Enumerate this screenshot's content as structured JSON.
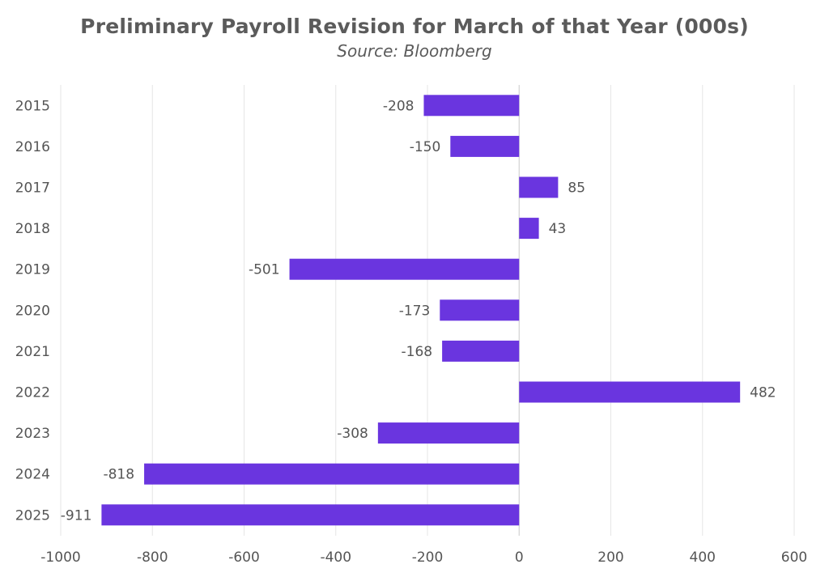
{
  "chart_data": {
    "type": "bar",
    "orientation": "horizontal",
    "title": "Preliminary Payroll Revision for March of that Year (000s)",
    "subtitle": "Source: Bloomberg",
    "xlabel": "",
    "ylabel": "",
    "categories": [
      "2015",
      "2016",
      "2017",
      "2018",
      "2019",
      "2020",
      "2021",
      "2022",
      "2023",
      "2024",
      "2025"
    ],
    "values": [
      -208,
      -150,
      85,
      43,
      -501,
      -173,
      -168,
      482,
      -308,
      -818,
      -911
    ],
    "xlim": [
      -1000,
      600
    ],
    "xticks": [
      -1000,
      -800,
      -600,
      -400,
      -200,
      0,
      200,
      400,
      600
    ],
    "grid": "vertical",
    "legend": "none",
    "colors": {
      "bar": "#6a35df",
      "text": "#5b5b5b",
      "grid": "#e6e6e6"
    }
  }
}
